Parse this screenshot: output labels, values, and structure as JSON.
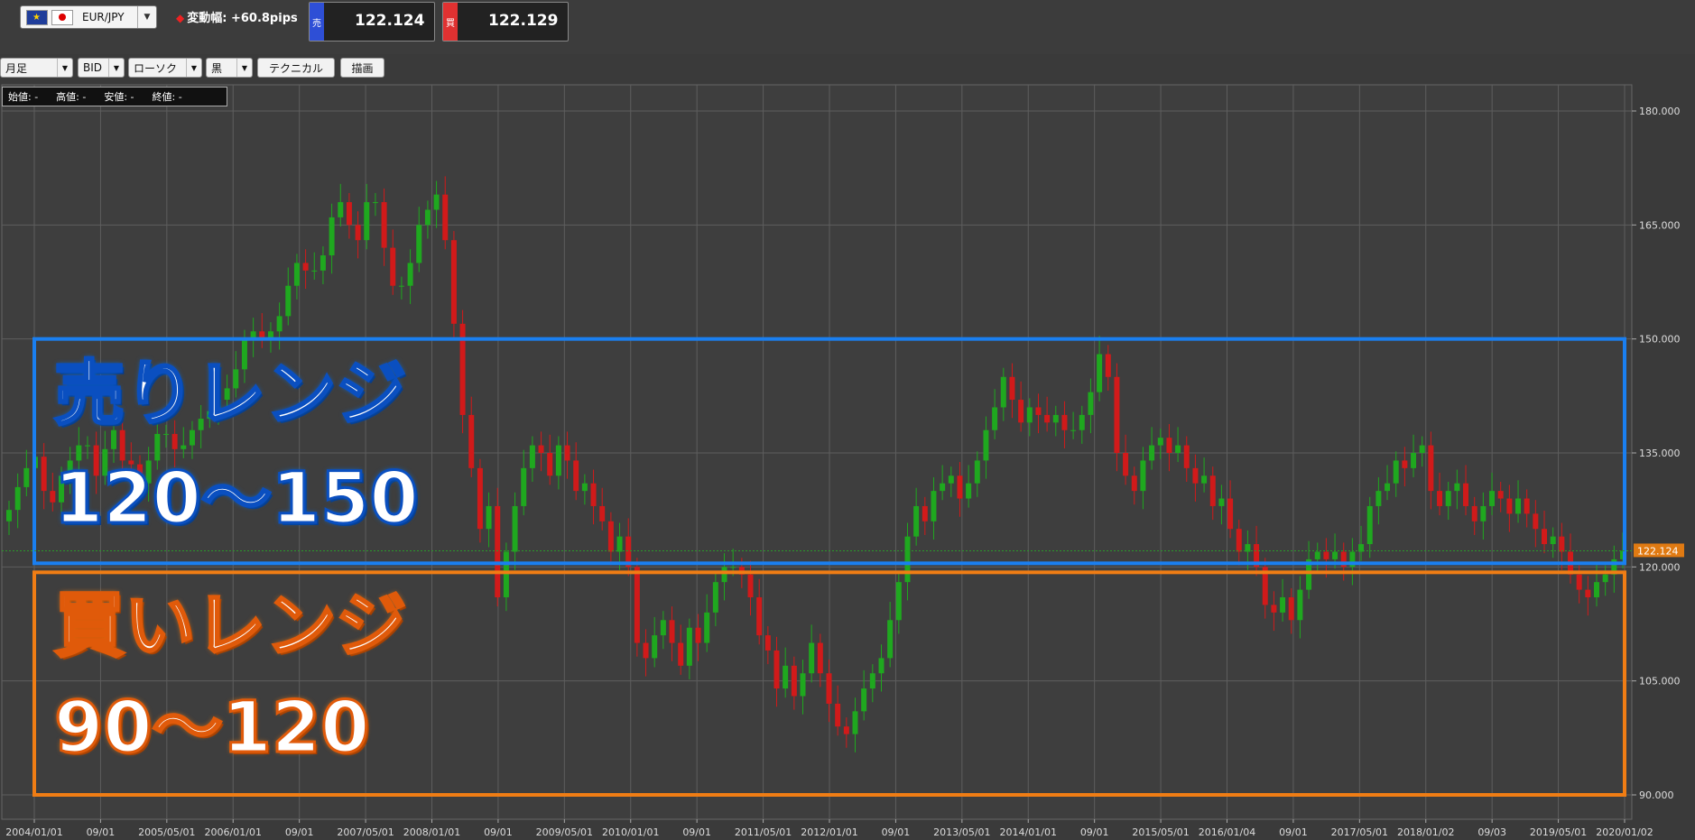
{
  "header": {
    "pair": "EUR/JPY",
    "change_label": "変動幅: +60.8pips",
    "sell": {
      "tag": "売",
      "price": "122.124",
      "color": "#2e4fd6"
    },
    "buy": {
      "tag": "買",
      "price": "122.129",
      "color": "#e03131"
    }
  },
  "toolbar": {
    "period": "月足",
    "side": "BID",
    "chart_type": "ローソク",
    "theme": "黒",
    "technical": "テクニカル",
    "draw": "描画"
  },
  "ohlc": {
    "open": "始値: -",
    "high": "高値: -",
    "low": "安値: -",
    "close": "終値: -"
  },
  "overlays": {
    "sell": {
      "title": "売りレンジ",
      "range": "120～150",
      "color": "#1a7ff0"
    },
    "buy": {
      "title": "買いレンジ",
      "range": "90～120",
      "color": "#f07d14"
    }
  },
  "chart_data": {
    "type": "candlestick",
    "ylim": [
      90,
      180
    ],
    "y_ticks": [
      "180.000",
      "165.000",
      "150.000",
      "135.000",
      "120.000",
      "105.000",
      "90.000"
    ],
    "x_ticks": [
      "2004/01/01",
      "09/01",
      "2005/05/01",
      "2006/01/01",
      "09/01",
      "2007/05/01",
      "2008/01/01",
      "09/01",
      "2009/05/01",
      "2010/01/01",
      "09/01",
      "2011/05/01",
      "2012/01/01",
      "09/01",
      "2013/05/01",
      "2014/01/01",
      "09/01",
      "2015/05/01",
      "2016/01/04",
      "09/01",
      "2017/05/01",
      "2018/01/02",
      "09/03",
      "2019/05/01",
      "2020/01/02"
    ],
    "current_price": "122.124",
    "bull_color": "#1fa81f",
    "bear_color": "#d11a1a",
    "bands": [
      {
        "name": "売りレンジ",
        "from": 120,
        "to": 150
      },
      {
        "name": "買いレンジ",
        "from": 90,
        "to": 120
      }
    ],
    "closes": [
      127.5,
      130.5,
      133,
      134.5,
      130,
      128.5,
      132,
      134,
      136,
      136,
      132,
      135.5,
      138,
      134,
      133.5,
      131,
      134,
      137.5,
      137.5,
      135.5,
      136,
      138,
      139.5,
      140.5,
      142,
      143.5,
      146,
      150,
      151,
      150,
      151,
      153,
      157,
      160,
      159,
      159,
      161,
      166,
      168,
      165,
      163,
      168,
      168,
      162,
      157,
      157,
      160,
      165,
      167,
      169,
      163,
      152,
      140,
      133,
      125,
      128,
      116,
      122,
      128,
      133,
      136,
      135,
      132,
      136,
      134,
      130,
      131,
      128,
      126,
      122,
      124,
      120,
      110,
      108,
      111,
      113,
      110,
      107,
      112,
      110,
      114,
      118,
      120,
      120,
      119,
      116,
      111,
      109,
      104,
      107,
      103,
      106,
      110,
      106,
      102,
      99,
      98,
      101,
      104,
      106,
      108,
      113,
      118,
      124,
      128,
      126,
      130,
      131,
      132,
      129,
      131,
      134,
      138,
      141,
      145,
      142,
      139,
      141,
      140,
      139,
      140,
      138,
      138,
      140,
      143,
      148,
      145,
      135,
      132,
      130,
      134,
      136,
      137,
      135,
      136,
      133,
      131,
      132,
      128,
      129,
      125,
      122,
      123,
      120,
      115,
      114,
      116,
      113,
      117,
      121,
      122,
      121,
      122,
      120,
      122,
      123,
      128,
      130,
      131,
      134,
      133,
      135,
      136,
      130,
      128,
      130,
      131,
      128,
      126,
      128,
      130,
      129,
      127,
      129,
      127,
      125,
      123,
      124,
      122,
      119,
      117,
      116,
      118,
      119,
      121,
      122.124
    ]
  }
}
